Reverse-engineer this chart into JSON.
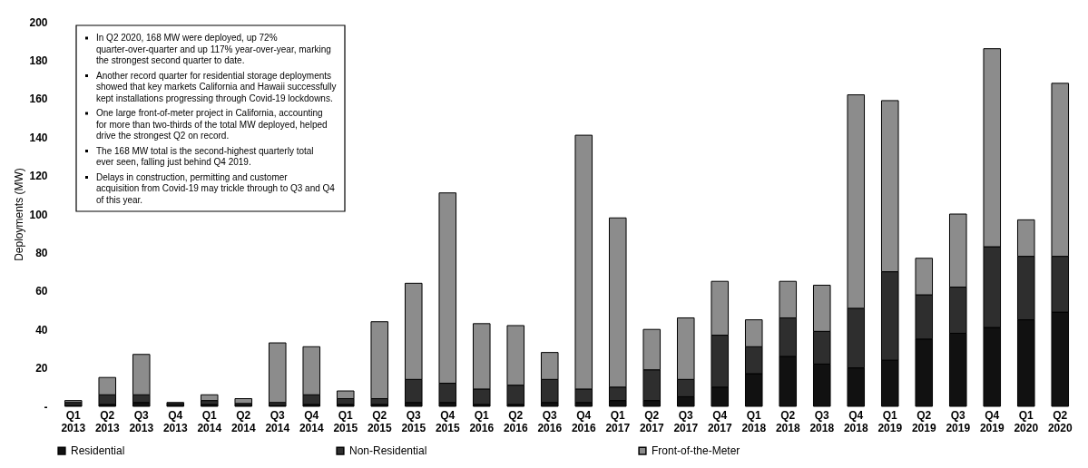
{
  "chart_data": {
    "type": "bar",
    "stacked": true,
    "ylabel": "Deployments (MW)",
    "categories": [
      "Q1 2013",
      "Q2 2013",
      "Q3 2013",
      "Q4 2013",
      "Q1 2014",
      "Q2 2014",
      "Q3 2014",
      "Q4 2014",
      "Q1 2015",
      "Q2 2015",
      "Q3 2015",
      "Q4 2015",
      "Q1 2016",
      "Q2 2016",
      "Q3 2016",
      "Q4 2016",
      "Q1 2017",
      "Q2 2017",
      "Q3 2017",
      "Q4 2017",
      "Q1 2018",
      "Q2 2018",
      "Q3 2018",
      "Q4 2018",
      "Q1 2019",
      "Q2 2019",
      "Q3 2019",
      "Q4 2019",
      "Q1 2020",
      "Q2 2020"
    ],
    "series": [
      {
        "name": "Residential",
        "color": "#111111",
        "values": [
          0.5,
          1,
          2,
          0.5,
          1,
          0.5,
          0.5,
          1,
          1,
          1,
          2,
          2,
          1,
          1,
          2,
          2,
          3,
          3,
          5,
          10,
          17,
          26,
          22,
          20,
          24,
          35,
          38,
          41,
          45,
          49
        ]
      },
      {
        "name": "Non-Residential",
        "color": "#2e2e2e",
        "values": [
          1.5,
          5,
          4,
          1,
          2,
          1,
          1.5,
          5,
          3,
          3,
          12,
          10,
          8,
          10,
          12,
          7,
          7,
          16,
          9,
          27,
          14,
          20,
          17,
          31,
          46,
          23,
          24,
          42,
          33,
          29
        ]
      },
      {
        "name": "Front-of-the-Meter",
        "color": "#8c8c8c",
        "values": [
          1,
          9,
          21,
          0.5,
          3,
          2.5,
          31,
          25,
          4,
          40,
          50,
          99,
          34,
          31,
          14,
          132,
          88,
          21,
          32,
          28,
          14,
          19,
          24,
          111,
          89,
          19,
          38,
          103,
          19,
          90
        ]
      }
    ],
    "ylim": [
      0,
      200
    ],
    "yticks": [
      {
        "value": 0,
        "label": "-"
      },
      20,
      40,
      60,
      80,
      100,
      120,
      140,
      160,
      180,
      200
    ],
    "grid": false,
    "legend": "bottom",
    "annotations": [
      "In Q2 2020, 168 MW were deployed, up 72% quarter-over-quarter and up 117% year-over-year, marking the strongest second quarter to date.",
      "Another record quarter for residential storage deployments showed that key markets California and Hawaii successfully kept installations progressing through Covid-19 lockdowns.",
      "One large front-of-meter project in California, accounting for more than two-thirds of the total MW deployed, helped drive the strongest Q2 on record.",
      "The 168 MW total is the second-highest quarterly total ever seen, falling just behind Q4 2019.",
      "Delays in construction, permitting and customer acquisition from Covid-19 may trickle through to Q3 and Q4 of this year."
    ]
  }
}
